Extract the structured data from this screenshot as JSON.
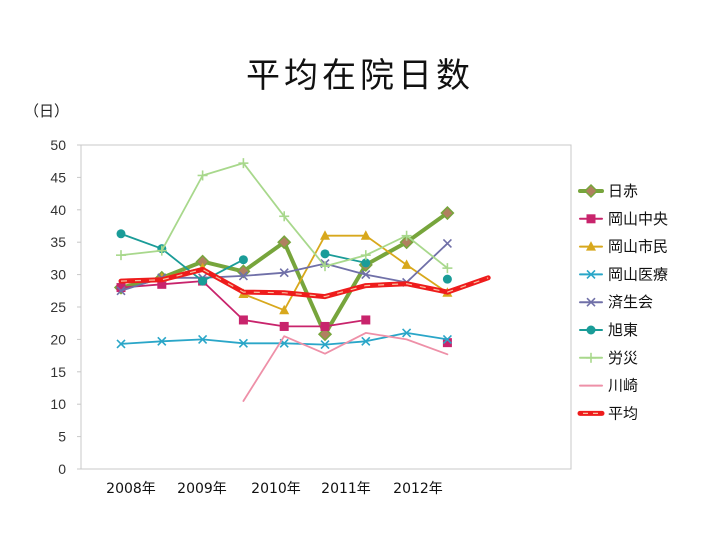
{
  "title": "平均在院日数",
  "unit_label": "（日）",
  "chart_data": {
    "type": "line",
    "title": "平均在院日数",
    "ylabel": "（日）",
    "ylim": [
      0,
      50
    ],
    "yticks": [
      0,
      5,
      10,
      15,
      20,
      25,
      30,
      35,
      40,
      45,
      50
    ],
    "x": [
      0,
      1,
      2,
      3,
      4,
      5,
      6,
      7,
      8,
      9
    ],
    "xtick_labels": [
      "2008年",
      "2009年",
      "2010年",
      "2011年",
      "2012年"
    ],
    "legend_position": "right",
    "grid": false,
    "series": [
      {
        "name": "日赤",
        "color": "#77a53c",
        "marker": "diamond",
        "width": 4,
        "values": [
          28.0,
          29.5,
          32.0,
          30.5,
          35.0,
          20.8,
          31.5,
          35.0,
          39.5,
          null
        ]
      },
      {
        "name": "岡山中央",
        "color": "#c8246c",
        "marker": "square",
        "width": 1.8,
        "values": [
          28.0,
          28.5,
          29.0,
          23.0,
          22.0,
          22.0,
          23.0,
          null,
          19.5,
          null
        ]
      },
      {
        "name": "岡山市民",
        "color": "#d8a81c",
        "marker": "triangle",
        "width": 1.8,
        "values": [
          null,
          29.5,
          31.0,
          27.0,
          24.5,
          36.0,
          36.0,
          31.5,
          27.2,
          null
        ]
      },
      {
        "name": "岡山医療",
        "color": "#2aa6c8",
        "marker": "x",
        "width": 1.8,
        "values": [
          19.3,
          19.7,
          20.0,
          19.4,
          19.4,
          19.2,
          19.7,
          21.0,
          20.0,
          null
        ]
      },
      {
        "name": "済生会",
        "color": "#7070a8",
        "marker": "x",
        "width": 1.8,
        "values": [
          27.5,
          29.5,
          29.5,
          29.8,
          30.3,
          31.7,
          30.0,
          28.8,
          34.8,
          null
        ]
      },
      {
        "name": "旭東",
        "color": "#1a9c98",
        "marker": "circle",
        "width": 1.8,
        "values": [
          36.3,
          34.0,
          29.0,
          32.3,
          null,
          33.2,
          31.8,
          null,
          29.3,
          null
        ]
      },
      {
        "name": "労災",
        "color": "#a8d88c",
        "marker": "plus",
        "width": 1.8,
        "values": [
          33.0,
          33.7,
          45.3,
          47.2,
          39.0,
          31.3,
          33.0,
          36.0,
          31.0,
          null
        ]
      },
      {
        "name": "川崎",
        "color": "#ee90a8",
        "marker": "none",
        "width": 1.8,
        "values": [
          null,
          null,
          null,
          10.5,
          20.5,
          17.8,
          21.0,
          20.0,
          17.7,
          null
        ]
      },
      {
        "name": "平均",
        "color": "#ee1c1c",
        "marker": "none",
        "width": 5,
        "dashed": true,
        "values": [
          29.0,
          29.2,
          30.8,
          27.3,
          27.2,
          26.6,
          28.3,
          28.6,
          27.3,
          29.5
        ]
      }
    ]
  }
}
